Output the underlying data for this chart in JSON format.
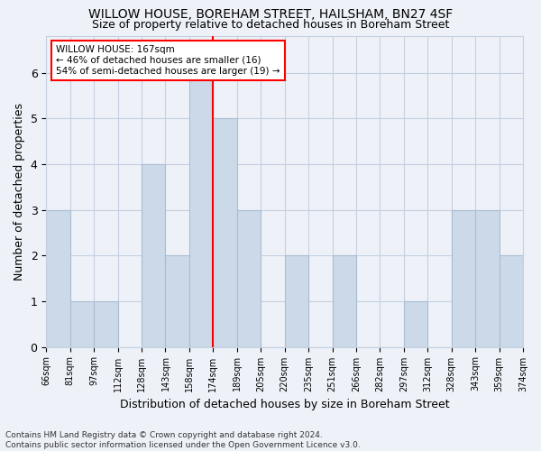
{
  "title1": "WILLOW HOUSE, BOREHAM STREET, HAILSHAM, BN27 4SF",
  "title2": "Size of property relative to detached houses in Boreham Street",
  "xlabel": "Distribution of detached houses by size in Boreham Street",
  "ylabel": "Number of detached properties",
  "bin_labels": [
    "66sqm",
    "81sqm",
    "97sqm",
    "112sqm",
    "128sqm",
    "143sqm",
    "158sqm",
    "174sqm",
    "189sqm",
    "205sqm",
    "220sqm",
    "235sqm",
    "251sqm",
    "266sqm",
    "282sqm",
    "297sqm",
    "312sqm",
    "328sqm",
    "343sqm",
    "359sqm",
    "374sqm"
  ],
  "heights": [
    3,
    1,
    1,
    0,
    4,
    2,
    6,
    5,
    3,
    0,
    2,
    0,
    2,
    0,
    0,
    1,
    0,
    3,
    3,
    2
  ],
  "bar_color": "#ccd9e8",
  "bar_edge_color": "#aabdd4",
  "vline_position": 6.5,
  "vline_color": "red",
  "annotation_title": "WILLOW HOUSE: 167sqm",
  "annotation_line1": "← 46% of detached houses are smaller (16)",
  "annotation_line2": "54% of semi-detached houses are larger (19) →",
  "ylim": [
    0,
    6.8
  ],
  "yticks": [
    0,
    1,
    2,
    3,
    4,
    5,
    6
  ],
  "footer1": "Contains HM Land Registry data © Crown copyright and database right 2024.",
  "footer2": "Contains public sector information licensed under the Open Government Licence v3.0.",
  "bg_color": "#eef2f8",
  "grid_color": "#c5cfe0",
  "spine_color": "#c5cfe0"
}
